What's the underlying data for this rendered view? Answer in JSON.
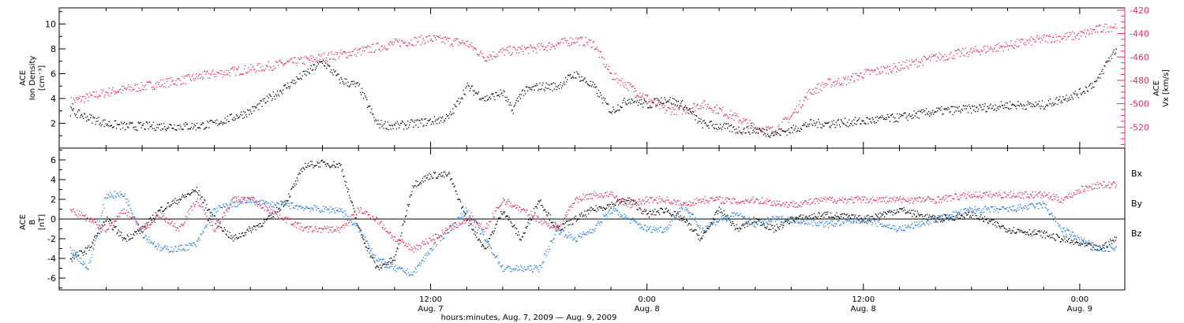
{
  "chart_data": [
    {
      "type": "scatter",
      "panel": "top",
      "ylabel_lines": [
        "ACE",
        "Ion Density",
        "[cm⁻³]"
      ],
      "y2label_lines": [
        "ACE",
        "Vx [km/s]"
      ],
      "ylim": [
        0,
        11.3
      ],
      "y2lim": [
        -538,
        -418
      ],
      "yticks": [
        2,
        4,
        6,
        8,
        10
      ],
      "y2ticks": [
        -420,
        -440,
        -460,
        -480,
        -500,
        -520
      ],
      "x_range_hours": [
        -8.6,
        50.5
      ],
      "series": [
        {
          "name": "",
          "axis": "left",
          "color": "#000000",
          "x": [
            -8,
            -7,
            -6,
            -5,
            -3,
            -1,
            0,
            2,
            3,
            4,
            5,
            6,
            7,
            8,
            9,
            10,
            11,
            12,
            13,
            14,
            15,
            16,
            16.5,
            17,
            18,
            19,
            20,
            21,
            22,
            23,
            24,
            25,
            26,
            27,
            28,
            29,
            30,
            31,
            32,
            33,
            34,
            36,
            38,
            40,
            42,
            44,
            46,
            47,
            48,
            49,
            49.5,
            50
          ],
          "values": [
            3,
            2.5,
            2,
            1.8,
            1.8,
            1.8,
            2,
            3,
            4,
            5,
            6,
            7,
            5.5,
            5,
            2,
            1.8,
            2,
            2.2,
            2.5,
            5,
            4,
            4.5,
            3,
            4.5,
            5,
            5,
            6,
            5,
            3,
            4,
            3.5,
            4,
            3.5,
            2,
            1.8,
            1.5,
            1.5,
            1.2,
            1.5,
            2,
            2,
            2.2,
            2.5,
            3,
            3.2,
            3.5,
            3.5,
            4,
            4.5,
            5.5,
            7,
            8
          ]
        },
        {
          "name": "",
          "axis": "right",
          "color": "#e0305e",
          "x": [
            -8,
            -6,
            -4,
            -2,
            0,
            2,
            4,
            6,
            8,
            10,
            12,
            14,
            15,
            16,
            18,
            20,
            21,
            22,
            24,
            25,
            26,
            27,
            28,
            29,
            30,
            31,
            32,
            33,
            34,
            35,
            36,
            38,
            40,
            42,
            44,
            46,
            48,
            49,
            50
          ],
          "values": [
            -498,
            -490,
            -485,
            -480,
            -474,
            -470,
            -465,
            -460,
            -455,
            -448,
            -444,
            -448,
            -460,
            -455,
            -452,
            -445,
            -448,
            -475,
            -495,
            -505,
            -505,
            -500,
            -505,
            -512,
            -520,
            -523,
            -510,
            -490,
            -482,
            -480,
            -474,
            -468,
            -460,
            -455,
            -450,
            -444,
            -441,
            -436,
            -433
          ]
        }
      ]
    },
    {
      "type": "scatter",
      "panel": "bottom",
      "ylabel_lines": [
        "ACE",
        "B",
        "[nT]"
      ],
      "ylim": [
        -7.2,
        7.2
      ],
      "yticks": [
        -6,
        -4,
        -2,
        0,
        2,
        4,
        6
      ],
      "zero_line": true,
      "x_range_hours": [
        -8.6,
        50.5
      ],
      "series": [
        {
          "name": "Bx",
          "color": "#000000",
          "x": [
            -8,
            -7,
            -6,
            -5,
            -4,
            -3,
            -2,
            -1,
            0,
            1,
            2,
            3,
            4,
            5,
            6,
            7,
            8,
            9,
            10,
            11,
            12,
            13,
            14,
            15,
            16,
            17,
            18,
            19,
            20,
            21,
            22,
            23,
            24,
            25,
            26,
            27,
            28,
            29,
            30,
            31,
            32,
            34,
            36,
            38,
            40,
            42,
            44,
            46,
            47,
            48,
            49,
            50
          ],
          "values": [
            -4,
            -3,
            0,
            -2,
            -1,
            1,
            2,
            3,
            0,
            -2,
            -1,
            0,
            2,
            5.5,
            5.7,
            5.5,
            -1,
            -5,
            -4,
            3.5,
            4.5,
            4.5,
            0,
            -3,
            1,
            -2,
            2,
            -1,
            0,
            1,
            1.5,
            2,
            0.5,
            1,
            0,
            -2,
            1,
            -1,
            0,
            -1,
            0,
            0.5,
            0,
            1,
            0,
            0.5,
            -1,
            -1.5,
            -2,
            -2.5,
            -3,
            -2
          ]
        },
        {
          "name": "By",
          "color": "#1f78d8",
          "x": [
            -8,
            -7,
            -6,
            -5,
            -4,
            -3,
            -2,
            -1,
            0,
            1,
            2,
            3,
            4,
            5,
            6,
            7,
            8,
            9,
            10,
            11,
            12,
            13,
            14,
            15,
            16,
            17,
            18,
            19,
            20,
            21,
            22,
            23,
            24,
            25,
            26,
            27,
            28,
            29,
            30,
            31,
            32,
            34,
            36,
            38,
            40,
            42,
            44,
            46,
            47,
            48,
            49,
            50
          ],
          "values": [
            -3,
            -5,
            2.5,
            2.5,
            -1.5,
            -3,
            -3,
            -2.5,
            1,
            1.5,
            2,
            1.5,
            1.5,
            1.2,
            1,
            1,
            -1,
            -4,
            -5,
            -5.5,
            -3,
            -1,
            1,
            -2,
            -5,
            -5,
            -5,
            -1,
            -2,
            -1,
            1,
            0,
            -1,
            -1,
            1.5,
            -1,
            0,
            0.5,
            -0.5,
            0,
            0,
            -0.5,
            0,
            -1,
            0,
            1,
            1,
            1.5,
            -1,
            -2,
            -3,
            -3
          ]
        },
        {
          "name": "Bz",
          "color": "#e0305e",
          "x": [
            -8,
            -7,
            -6,
            -5,
            -4,
            -3,
            -2,
            -1,
            0,
            1,
            2,
            3,
            4,
            5,
            6,
            7,
            8,
            9,
            10,
            11,
            12,
            13,
            14,
            15,
            16,
            17,
            18,
            19,
            20,
            21,
            22,
            23,
            24,
            25,
            26,
            27,
            28,
            29,
            30,
            31,
            32,
            34,
            36,
            38,
            40,
            42,
            44,
            46,
            47,
            48,
            49,
            50
          ],
          "values": [
            1,
            0,
            -1,
            1,
            -1,
            0.5,
            -1,
            2,
            -1,
            2,
            2,
            1,
            0,
            -1,
            -1,
            -1,
            1,
            0,
            -2,
            -3,
            -2,
            -1,
            0,
            -1,
            2,
            1,
            0,
            -1,
            2,
            2.5,
            2.5,
            1.5,
            2,
            2,
            1.5,
            2,
            2,
            1.8,
            2,
            1.7,
            1.5,
            2,
            2,
            2,
            2,
            2.5,
            2.5,
            2.5,
            2,
            3,
            3.5,
            3.5
          ]
        }
      ]
    }
  ],
  "x_axis": {
    "ticks": [
      {
        "time": "12:00",
        "date": "Aug. 7",
        "hours": 12
      },
      {
        "time": "0:00",
        "date": "Aug. 8",
        "hours": 24
      },
      {
        "time": "12:00",
        "date": "Aug. 8",
        "hours": 36
      },
      {
        "time": "0:00",
        "date": "Aug. 9",
        "hours": 48
      }
    ],
    "label": "hours:minutes, Aug. 7, 2009 — Aug. 9, 2009"
  },
  "legend": {
    "bx": "Bx",
    "by": "By",
    "bz": "Bz"
  }
}
